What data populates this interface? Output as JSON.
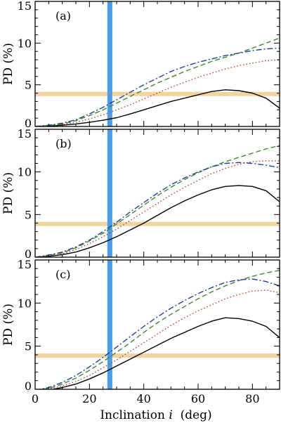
{
  "chart_data": [
    {
      "type": "line",
      "panel_label": "(a)",
      "ylabel": "PD (%)",
      "xlabel": "",
      "xlim": [
        0,
        90
      ],
      "ylim": [
        0,
        15
      ],
      "x_ticks": [
        0,
        20,
        40,
        60,
        80
      ],
      "y_ticks": [
        0,
        5,
        10,
        15
      ],
      "vertical_band": {
        "x": 27.5,
        "color": "#4a9de8"
      },
      "horizontal_band": {
        "y": 3.9,
        "color": "#f1d3a0"
      },
      "series": [
        {
          "style": "solid",
          "color": "#000000",
          "x": [
            0,
            5,
            10,
            15,
            20,
            25,
            30,
            35,
            40,
            45,
            50,
            55,
            60,
            65,
            70,
            75,
            80,
            85,
            90
          ],
          "y": [
            0,
            0.05,
            0.15,
            0.3,
            0.5,
            0.75,
            1.05,
            1.5,
            2.0,
            2.5,
            3.0,
            3.4,
            3.8,
            4.2,
            4.4,
            4.3,
            4.0,
            3.4,
            2.2
          ]
        },
        {
          "style": "dotted",
          "color": "#c0392b",
          "x": [
            0,
            5,
            10,
            15,
            20,
            25,
            30,
            35,
            40,
            45,
            50,
            55,
            60,
            65,
            70,
            75,
            80,
            85,
            90
          ],
          "y": [
            0,
            0.1,
            0.25,
            0.5,
            0.9,
            1.4,
            2.0,
            2.6,
            3.3,
            4.0,
            4.7,
            5.3,
            5.9,
            6.4,
            6.9,
            7.3,
            7.6,
            7.9,
            8.0
          ]
        },
        {
          "style": "dashed",
          "color": "#3a8c2a",
          "x": [
            0,
            5,
            10,
            15,
            20,
            25,
            30,
            35,
            40,
            45,
            50,
            55,
            60,
            65,
            70,
            75,
            80,
            85,
            90
          ],
          "y": [
            0,
            0.1,
            0.3,
            0.7,
            1.3,
            2.0,
            2.8,
            3.6,
            4.4,
            5.2,
            5.9,
            6.6,
            7.2,
            7.8,
            8.3,
            8.8,
            9.4,
            10.0,
            10.6
          ]
        },
        {
          "style": "dashdot",
          "color": "#1f3fa6",
          "x": [
            0,
            5,
            10,
            15,
            20,
            25,
            30,
            35,
            40,
            45,
            50,
            55,
            60,
            65,
            70,
            75,
            80,
            85,
            90
          ],
          "y": [
            0,
            0.15,
            0.4,
            0.8,
            1.5,
            2.3,
            3.2,
            4.1,
            5.0,
            5.8,
            6.6,
            7.2,
            7.7,
            8.1,
            8.5,
            8.8,
            9.1,
            9.3,
            9.4
          ]
        }
      ]
    },
    {
      "type": "line",
      "panel_label": "(b)",
      "ylabel": "PD (%)",
      "xlabel": "",
      "xlim": [
        0,
        90
      ],
      "ylim": [
        0,
        15
      ],
      "x_ticks": [
        0,
        20,
        40,
        60,
        80
      ],
      "y_ticks": [
        0,
        5,
        10,
        15
      ],
      "vertical_band": {
        "x": 27.5,
        "color": "#4a9de8"
      },
      "horizontal_band": {
        "y": 3.9,
        "color": "#f1d3a0"
      },
      "series": [
        {
          "style": "solid",
          "color": "#000000",
          "x": [
            0,
            5,
            10,
            15,
            20,
            25,
            30,
            35,
            40,
            45,
            50,
            55,
            60,
            65,
            70,
            75,
            80,
            85,
            90
          ],
          "y": [
            0,
            0.1,
            0.3,
            0.6,
            1.1,
            1.7,
            2.4,
            3.2,
            4.0,
            4.9,
            5.8,
            6.6,
            7.3,
            7.9,
            8.3,
            8.4,
            8.3,
            7.8,
            6.5
          ]
        },
        {
          "style": "dotted",
          "color": "#c0392b",
          "x": [
            0,
            5,
            10,
            15,
            20,
            25,
            30,
            35,
            40,
            45,
            50,
            55,
            60,
            65,
            70,
            75,
            80,
            85,
            90
          ],
          "y": [
            0,
            0.15,
            0.4,
            0.9,
            1.6,
            2.4,
            3.3,
            4.3,
            5.3,
            6.3,
            7.3,
            8.2,
            9.0,
            9.8,
            10.4,
            10.9,
            11.2,
            11.3,
            11.3
          ]
        },
        {
          "style": "dashed",
          "color": "#3a8c2a",
          "x": [
            0,
            5,
            10,
            15,
            20,
            25,
            30,
            35,
            40,
            45,
            50,
            55,
            60,
            65,
            70,
            75,
            80,
            85,
            90
          ],
          "y": [
            0,
            0.2,
            0.5,
            1.1,
            1.9,
            2.8,
            3.9,
            5.0,
            6.1,
            7.2,
            8.2,
            9.1,
            9.9,
            10.6,
            11.2,
            11.7,
            12.2,
            12.7,
            13.1
          ]
        },
        {
          "style": "dashdot",
          "color": "#1f3fa6",
          "x": [
            0,
            5,
            10,
            15,
            20,
            25,
            30,
            35,
            40,
            45,
            50,
            55,
            60,
            65,
            70,
            75,
            80,
            85,
            90
          ],
          "y": [
            0,
            0.25,
            0.6,
            1.2,
            2.0,
            3.0,
            4.1,
            5.3,
            6.4,
            7.5,
            8.5,
            9.3,
            10.0,
            10.6,
            11.0,
            11.1,
            11.0,
            10.8,
            10.5
          ]
        }
      ]
    },
    {
      "type": "line",
      "panel_label": "(c)",
      "ylabel": "PD (%)",
      "xlabel": "Inclination i  (deg)",
      "xlabel_main": "Inclination ",
      "xlabel_var": "i",
      "xlabel_unit": "  (deg)",
      "xlim": [
        0,
        90
      ],
      "ylim": [
        0,
        15
      ],
      "x_ticks": [
        0,
        20,
        40,
        60,
        80
      ],
      "y_ticks": [
        0,
        5,
        10,
        15
      ],
      "vertical_band": {
        "x": 27.5,
        "color": "#4a9de8"
      },
      "horizontal_band": {
        "y": 3.9,
        "color": "#f1d3a0"
      },
      "series": [
        {
          "style": "solid",
          "color": "#000000",
          "x": [
            0,
            5,
            10,
            15,
            20,
            25,
            30,
            35,
            40,
            45,
            50,
            55,
            60,
            65,
            70,
            75,
            80,
            85,
            90
          ],
          "y": [
            -0.2,
            -0.1,
            0.2,
            0.6,
            1.2,
            1.9,
            2.7,
            3.5,
            4.3,
            5.1,
            5.9,
            6.6,
            7.3,
            7.9,
            8.3,
            8.2,
            7.9,
            7.3,
            6.0
          ]
        },
        {
          "style": "dotted",
          "color": "#c0392b",
          "x": [
            0,
            5,
            10,
            15,
            20,
            25,
            30,
            35,
            40,
            45,
            50,
            55,
            60,
            65,
            70,
            75,
            80,
            85,
            90
          ],
          "y": [
            -0.2,
            0.0,
            0.4,
            0.9,
            1.6,
            2.5,
            3.4,
            4.4,
            5.4,
            6.4,
            7.4,
            8.3,
            9.1,
            9.8,
            10.5,
            11.0,
            11.4,
            11.5,
            11.2
          ]
        },
        {
          "style": "dashed",
          "color": "#3a8c2a",
          "x": [
            0,
            5,
            10,
            15,
            20,
            25,
            30,
            35,
            40,
            45,
            50,
            55,
            60,
            65,
            70,
            75,
            80,
            85,
            90
          ],
          "y": [
            -0.1,
            0.1,
            0.6,
            1.3,
            2.2,
            3.2,
            4.3,
            5.4,
            6.6,
            7.7,
            8.7,
            9.6,
            10.5,
            11.3,
            12.0,
            12.6,
            13.1,
            13.5,
            13.8
          ]
        },
        {
          "style": "dashdot",
          "color": "#1f3fa6",
          "x": [
            0,
            5,
            10,
            15,
            20,
            25,
            30,
            35,
            40,
            45,
            50,
            55,
            60,
            65,
            70,
            75,
            80,
            85,
            90
          ],
          "y": [
            -0.1,
            0.2,
            0.8,
            1.6,
            2.6,
            3.7,
            4.9,
            6.1,
            7.3,
            8.4,
            9.4,
            10.3,
            11.1,
            11.8,
            12.4,
            12.7,
            12.8,
            12.5,
            12.0
          ]
        }
      ]
    }
  ]
}
